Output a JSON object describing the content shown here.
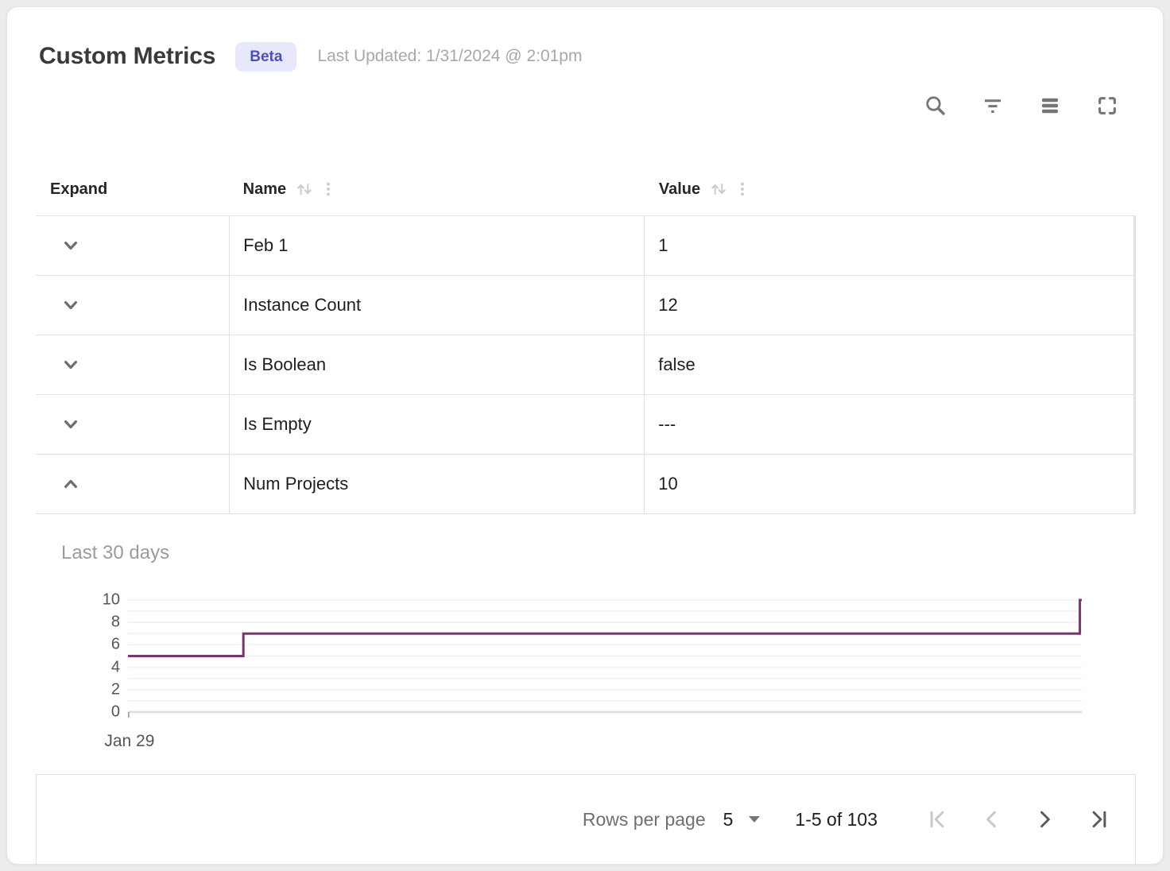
{
  "header": {
    "title": "Custom Metrics",
    "badge": "Beta",
    "last_updated": "Last Updated: 1/31/2024 @ 2:01pm"
  },
  "toolbar": {
    "icons": [
      "search-icon",
      "filter-icon",
      "density-icon",
      "fullscreen-icon"
    ]
  },
  "table": {
    "columns": [
      "Expand",
      "Name",
      "Value"
    ],
    "rows": [
      {
        "name": "Feb 1",
        "value": "1",
        "expanded": false
      },
      {
        "name": "Instance Count",
        "value": "12",
        "expanded": false
      },
      {
        "name": "Is Boolean",
        "value": "false",
        "expanded": false
      },
      {
        "name": "Is Empty",
        "value": "---",
        "expanded": false
      },
      {
        "name": "Num Projects",
        "value": "10",
        "expanded": true
      }
    ]
  },
  "chart_data": {
    "type": "line",
    "subtype": "step-after",
    "title": "Last 30 days",
    "series": [
      {
        "name": "Num Projects",
        "points": [
          {
            "x": 0,
            "y": 5
          },
          {
            "x": 0.121,
            "y": 7
          },
          {
            "x": 0.998,
            "y": 10
          }
        ]
      }
    ],
    "yticks": [
      10,
      8,
      6,
      4,
      2,
      0
    ],
    "ylim": [
      0,
      10
    ],
    "x_tick_labels": [
      "Jan 29"
    ],
    "grid": true,
    "legend": false,
    "line_color": "#76386b",
    "grid_color": "#f1f1f1",
    "zero_line_color": "#dedede"
  },
  "pagination": {
    "rows_per_page_label": "Rows per page",
    "rows_per_page_value": "5",
    "range_label": "1-5 of 103",
    "first_disabled": true,
    "prev_disabled": true,
    "next_disabled": false,
    "last_disabled": false
  }
}
